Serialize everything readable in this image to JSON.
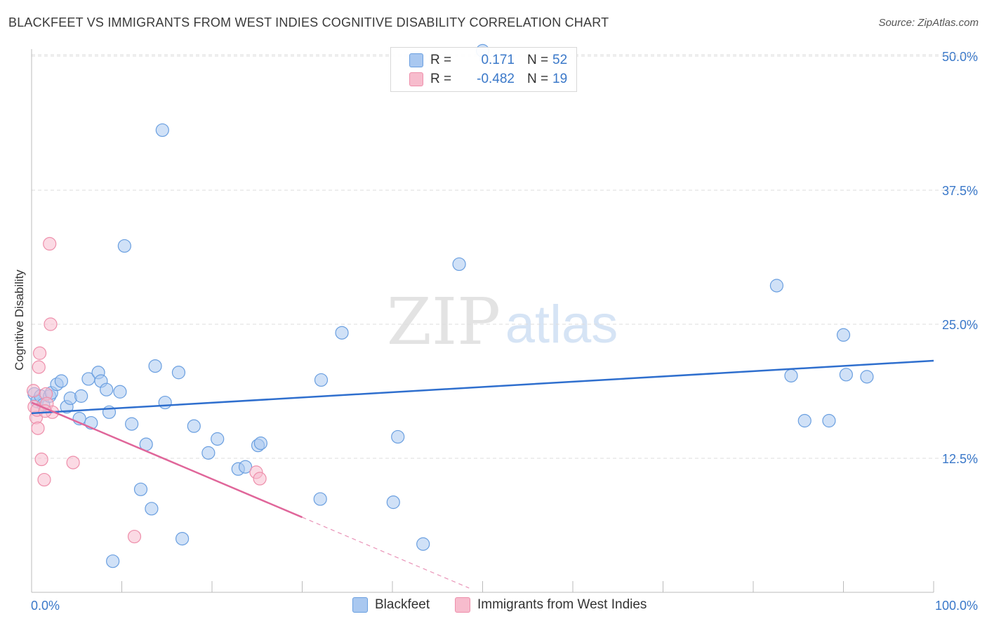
{
  "title": "BLACKFEET VS IMMIGRANTS FROM WEST INDIES COGNITIVE DISABILITY CORRELATION CHART",
  "source": "Source: ZipAtlas.com",
  "watermark": {
    "zip": "ZIP",
    "atlas": "atlas"
  },
  "colors": {
    "blue_fill": "#a9c8f0",
    "blue_stroke": "#6a9fe0",
    "blue_line": "#2f6fce",
    "pink_fill": "#f7bccd",
    "pink_stroke": "#ee8fab",
    "pink_line": "#e0669a",
    "grid": "#dddddd",
    "tick_label": "#3a78c9"
  },
  "legend": {
    "rows": [
      {
        "series": "Blackfeet",
        "r_label": "R =",
        "r_value": " 0.171",
        "n_label": "N =",
        "n_value": "52"
      },
      {
        "series": "Immigrants from West Indies",
        "r_label": "R =",
        "r_value": "-0.482",
        "n_label": "N =",
        "n_value": "19"
      }
    ]
  },
  "bottom_legend": [
    "Blackfeet",
    "Immigrants from West Indies"
  ],
  "chart_data": {
    "type": "scatter",
    "title": "BLACKFEET VS IMMIGRANTS FROM WEST INDIES COGNITIVE DISABILITY CORRELATION CHART",
    "xlabel": "",
    "ylabel": "Cognitive Disability",
    "xlim": [
      0,
      100
    ],
    "ylim": [
      0,
      51
    ],
    "x_tick_labels": [
      {
        "value": 0,
        "label": "0.0%"
      },
      {
        "value": 100,
        "label": "100.0%"
      }
    ],
    "y_tick_labels": [
      {
        "value": 12.5,
        "label": "12.5%"
      },
      {
        "value": 25,
        "label": "25.0%"
      },
      {
        "value": 37.5,
        "label": "37.5%"
      },
      {
        "value": 50,
        "label": "50.0%"
      }
    ],
    "x_minor_ticks": [
      0,
      10,
      20,
      30,
      40,
      50,
      60,
      70,
      80,
      90,
      100
    ],
    "grid": true,
    "series": [
      {
        "name": "Blackfeet",
        "color": "#6a9fe0",
        "R": 0.171,
        "N": 52,
        "trend": {
          "x0": 0,
          "y0": 16.7,
          "x1": 100,
          "y1": 21.6
        },
        "points": [
          [
            0.3,
            18.5
          ],
          [
            0.6,
            17.8
          ],
          [
            1.0,
            18.3
          ],
          [
            1.3,
            17.5
          ],
          [
            2.0,
            18.3
          ],
          [
            2.2,
            18.6
          ],
          [
            2.8,
            19.4
          ],
          [
            3.3,
            19.7
          ],
          [
            3.9,
            17.3
          ],
          [
            4.3,
            18.1
          ],
          [
            5.3,
            16.2
          ],
          [
            5.5,
            18.3
          ],
          [
            6.3,
            19.9
          ],
          [
            6.6,
            15.8
          ],
          [
            7.4,
            20.5
          ],
          [
            7.7,
            19.7
          ],
          [
            8.3,
            18.9
          ],
          [
            8.6,
            16.8
          ],
          [
            9.0,
            2.9
          ],
          [
            9.8,
            18.7
          ],
          [
            10.3,
            32.3
          ],
          [
            11.1,
            15.7
          ],
          [
            12.1,
            9.6
          ],
          [
            12.7,
            13.8
          ],
          [
            13.3,
            7.8
          ],
          [
            13.7,
            21.1
          ],
          [
            14.5,
            43.1
          ],
          [
            14.8,
            17.7
          ],
          [
            16.3,
            20.5
          ],
          [
            16.7,
            5.0
          ],
          [
            18.0,
            15.5
          ],
          [
            19.6,
            13.0
          ],
          [
            20.6,
            14.3
          ],
          [
            22.9,
            11.5
          ],
          [
            23.7,
            11.7
          ],
          [
            25.1,
            13.7
          ],
          [
            25.4,
            13.9
          ],
          [
            32.0,
            8.7
          ],
          [
            32.1,
            19.8
          ],
          [
            34.4,
            24.2
          ],
          [
            40.1,
            8.4
          ],
          [
            40.6,
            14.5
          ],
          [
            43.4,
            4.5
          ],
          [
            47.4,
            30.6
          ],
          [
            82.6,
            28.6
          ],
          [
            84.2,
            20.2
          ],
          [
            85.7,
            16.0
          ],
          [
            88.4,
            16.0
          ],
          [
            90.0,
            24.0
          ],
          [
            90.3,
            20.3
          ],
          [
            92.6,
            20.1
          ],
          [
            50.0,
            50.5
          ]
        ]
      },
      {
        "name": "Immigrants from West Indies",
        "color": "#ee8fab",
        "R": -0.482,
        "N": 19,
        "trend": {
          "x0": 0,
          "y0": 17.7,
          "x1": 30,
          "y1": 7.0
        },
        "trend_dashed": {
          "x0": 30,
          "y0": 7.0,
          "x1": 48.5,
          "y1": 0.4
        },
        "points": [
          [
            0.2,
            18.8
          ],
          [
            0.3,
            17.3
          ],
          [
            0.5,
            16.3
          ],
          [
            0.6,
            17.0
          ],
          [
            0.7,
            15.3
          ],
          [
            0.8,
            21.0
          ],
          [
            0.9,
            22.3
          ],
          [
            1.1,
            12.4
          ],
          [
            1.4,
            10.5
          ],
          [
            1.6,
            18.5
          ],
          [
            1.7,
            17.6
          ],
          [
            2.0,
            32.5
          ],
          [
            2.1,
            25.0
          ],
          [
            2.3,
            16.8
          ],
          [
            4.6,
            12.1
          ],
          [
            11.4,
            5.2
          ],
          [
            24.9,
            11.2
          ],
          [
            25.3,
            10.6
          ],
          [
            1.5,
            16.9
          ]
        ]
      }
    ]
  }
}
